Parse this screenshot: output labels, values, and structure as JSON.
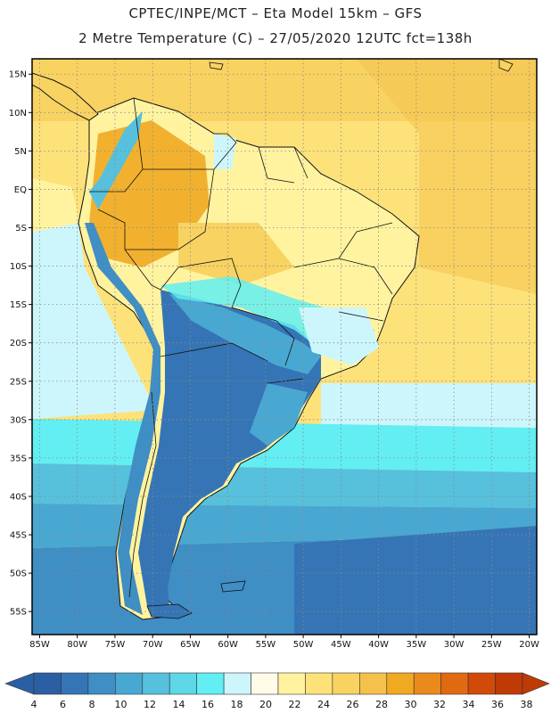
{
  "header": {
    "line1": "CPTEC/INPE/MCT –  Eta Model 15km – GFS",
    "line2": "2 Metre Temperature (C) – 27/05/2020 12UTC fct=138h"
  },
  "map": {
    "lon_min": -86,
    "lon_max": -19,
    "lat_min": -58,
    "lat_max": 17,
    "lon_ticks": [
      {
        "value": -85,
        "label": "85W"
      },
      {
        "value": -80,
        "label": "80W"
      },
      {
        "value": -75,
        "label": "75W"
      },
      {
        "value": -70,
        "label": "70W"
      },
      {
        "value": -65,
        "label": "65W"
      },
      {
        "value": -60,
        "label": "60W"
      },
      {
        "value": -55,
        "label": "55W"
      },
      {
        "value": -50,
        "label": "50W"
      },
      {
        "value": -45,
        "label": "45W"
      },
      {
        "value": -40,
        "label": "40W"
      },
      {
        "value": -35,
        "label": "35W"
      },
      {
        "value": -30,
        "label": "30W"
      },
      {
        "value": -25,
        "label": "25W"
      },
      {
        "value": -20,
        "label": "20W"
      }
    ],
    "lat_ticks": [
      {
        "value": 15,
        "label": "15N"
      },
      {
        "value": 10,
        "label": "10N"
      },
      {
        "value": 5,
        "label": "5N"
      },
      {
        "value": 0,
        "label": "EQ"
      },
      {
        "value": -5,
        "label": "5S"
      },
      {
        "value": -10,
        "label": "10S"
      },
      {
        "value": -15,
        "label": "15S"
      },
      {
        "value": -20,
        "label": "20S"
      },
      {
        "value": -25,
        "label": "25S"
      },
      {
        "value": -30,
        "label": "30S"
      },
      {
        "value": -35,
        "label": "35S"
      },
      {
        "value": -40,
        "label": "40S"
      },
      {
        "value": -45,
        "label": "45S"
      },
      {
        "value": -50,
        "label": "50S"
      },
      {
        "value": -55,
        "label": "55S"
      }
    ],
    "grid": true
  },
  "colorbar": {
    "labels": [
      "4",
      "6",
      "8",
      "10",
      "12",
      "14",
      "16",
      "18",
      "20",
      "22",
      "24",
      "26",
      "28",
      "30",
      "32",
      "34",
      "36",
      "38"
    ],
    "colors": [
      "#2b5fa3",
      "#3575b5",
      "#3f8ec4",
      "#49a8d2",
      "#57c0dc",
      "#5ed8e6",
      "#62eef2",
      "#cdf6fc",
      "#fffbe6",
      "#fff3a0",
      "#fde27a",
      "#f8d362",
      "#f4c24c",
      "#f0aa22",
      "#eb8a1c",
      "#e06a12",
      "#d24a0a",
      "#c03a08"
    ],
    "low_arrow_color": "#2b5fa3",
    "high_arrow_color": "#bd3b05"
  }
}
